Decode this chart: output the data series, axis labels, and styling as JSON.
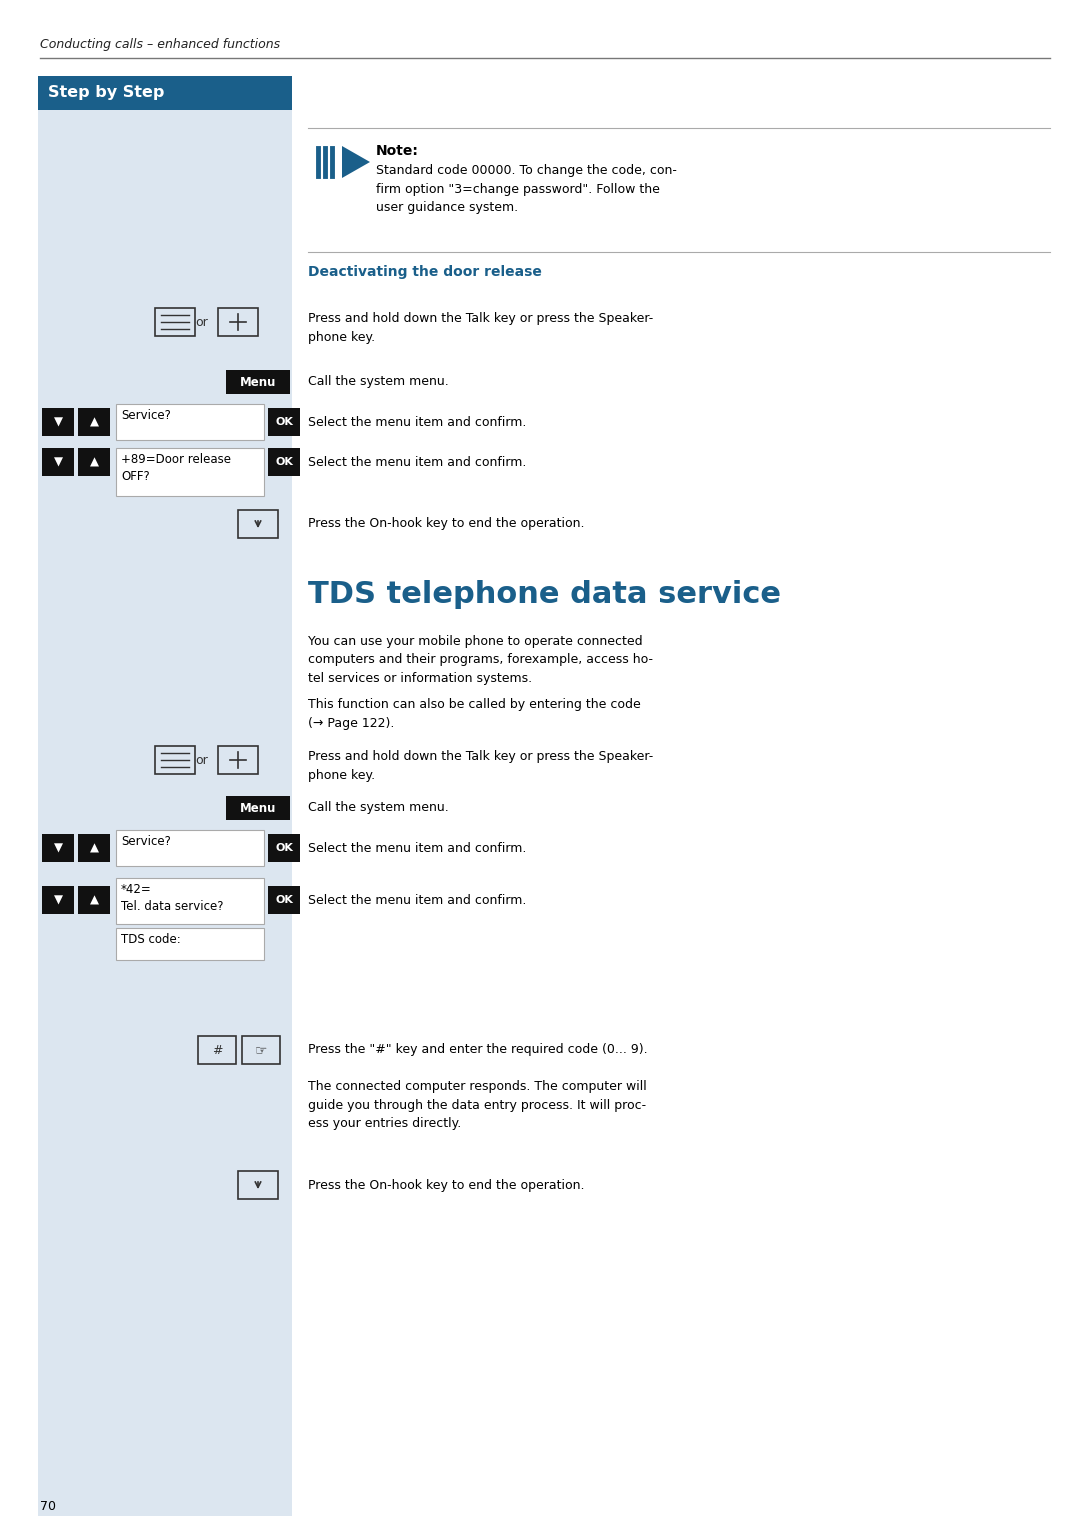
{
  "page_bg": "#ffffff",
  "left_panel_bg": "#dce6f0",
  "header_text": "Conducting calls – enhanced functions",
  "step_by_step_bg": "#1a5f8a",
  "step_by_step_text": "Step by Step",
  "note_label": "Note:",
  "note_body": "Standard code 00000. To change the code, con-\nfirm option \"3=change password\". Follow the\nuser guidance system.",
  "deactivating_heading": "Deactivating the door release",
  "row1_right_text": "Press and hold down the Talk key or press the Speaker-\nphone key.",
  "row2_menu_text": "Menu",
  "row2_right_text": "Call the system menu.",
  "row3_label": "Service?",
  "row3_right_text": "Select the menu item and confirm.",
  "row4_label": "+89=Door release\nOFF?",
  "row4_right_text": "Select the menu item and confirm.",
  "row5_right_text": "Press the On-hook key to end the operation.",
  "tds_heading": "TDS telephone data service",
  "tds_para1": "You can use your mobile phone to operate connected\ncomputers and their programs, forexample, access ho-\ntel services or information systems.",
  "tds_para2": "This function can also be called by entering the code\n(→ Page 122).",
  "tds_row1_right": "Press and hold down the Talk key or press the Speaker-\nphone key.",
  "tds_menu_text": "Menu",
  "tds_menu_right": "Call the system menu.",
  "tds_row3_label": "Service?",
  "tds_row3_right": "Select the menu item and confirm.",
  "tds_row4_label": "*42=\nTel. data service?",
  "tds_row4_box2": "TDS code:",
  "tds_row4_right": "Select the menu item and confirm.",
  "tds_row5_right": "Press the \"#\" key and enter the required code (0... 9).",
  "tds_row6_right": "The connected computer responds. The computer will\nguide you through the data entry process. It will proc-\ness your entries directly.",
  "tds_row7_right": "Press the On-hook key to end the operation.",
  "page_num": "70",
  "step_bg_color": "#1a5f8a",
  "deactivating_color": "#1a5f8a",
  "tds_heading_color": "#1a5f8a"
}
